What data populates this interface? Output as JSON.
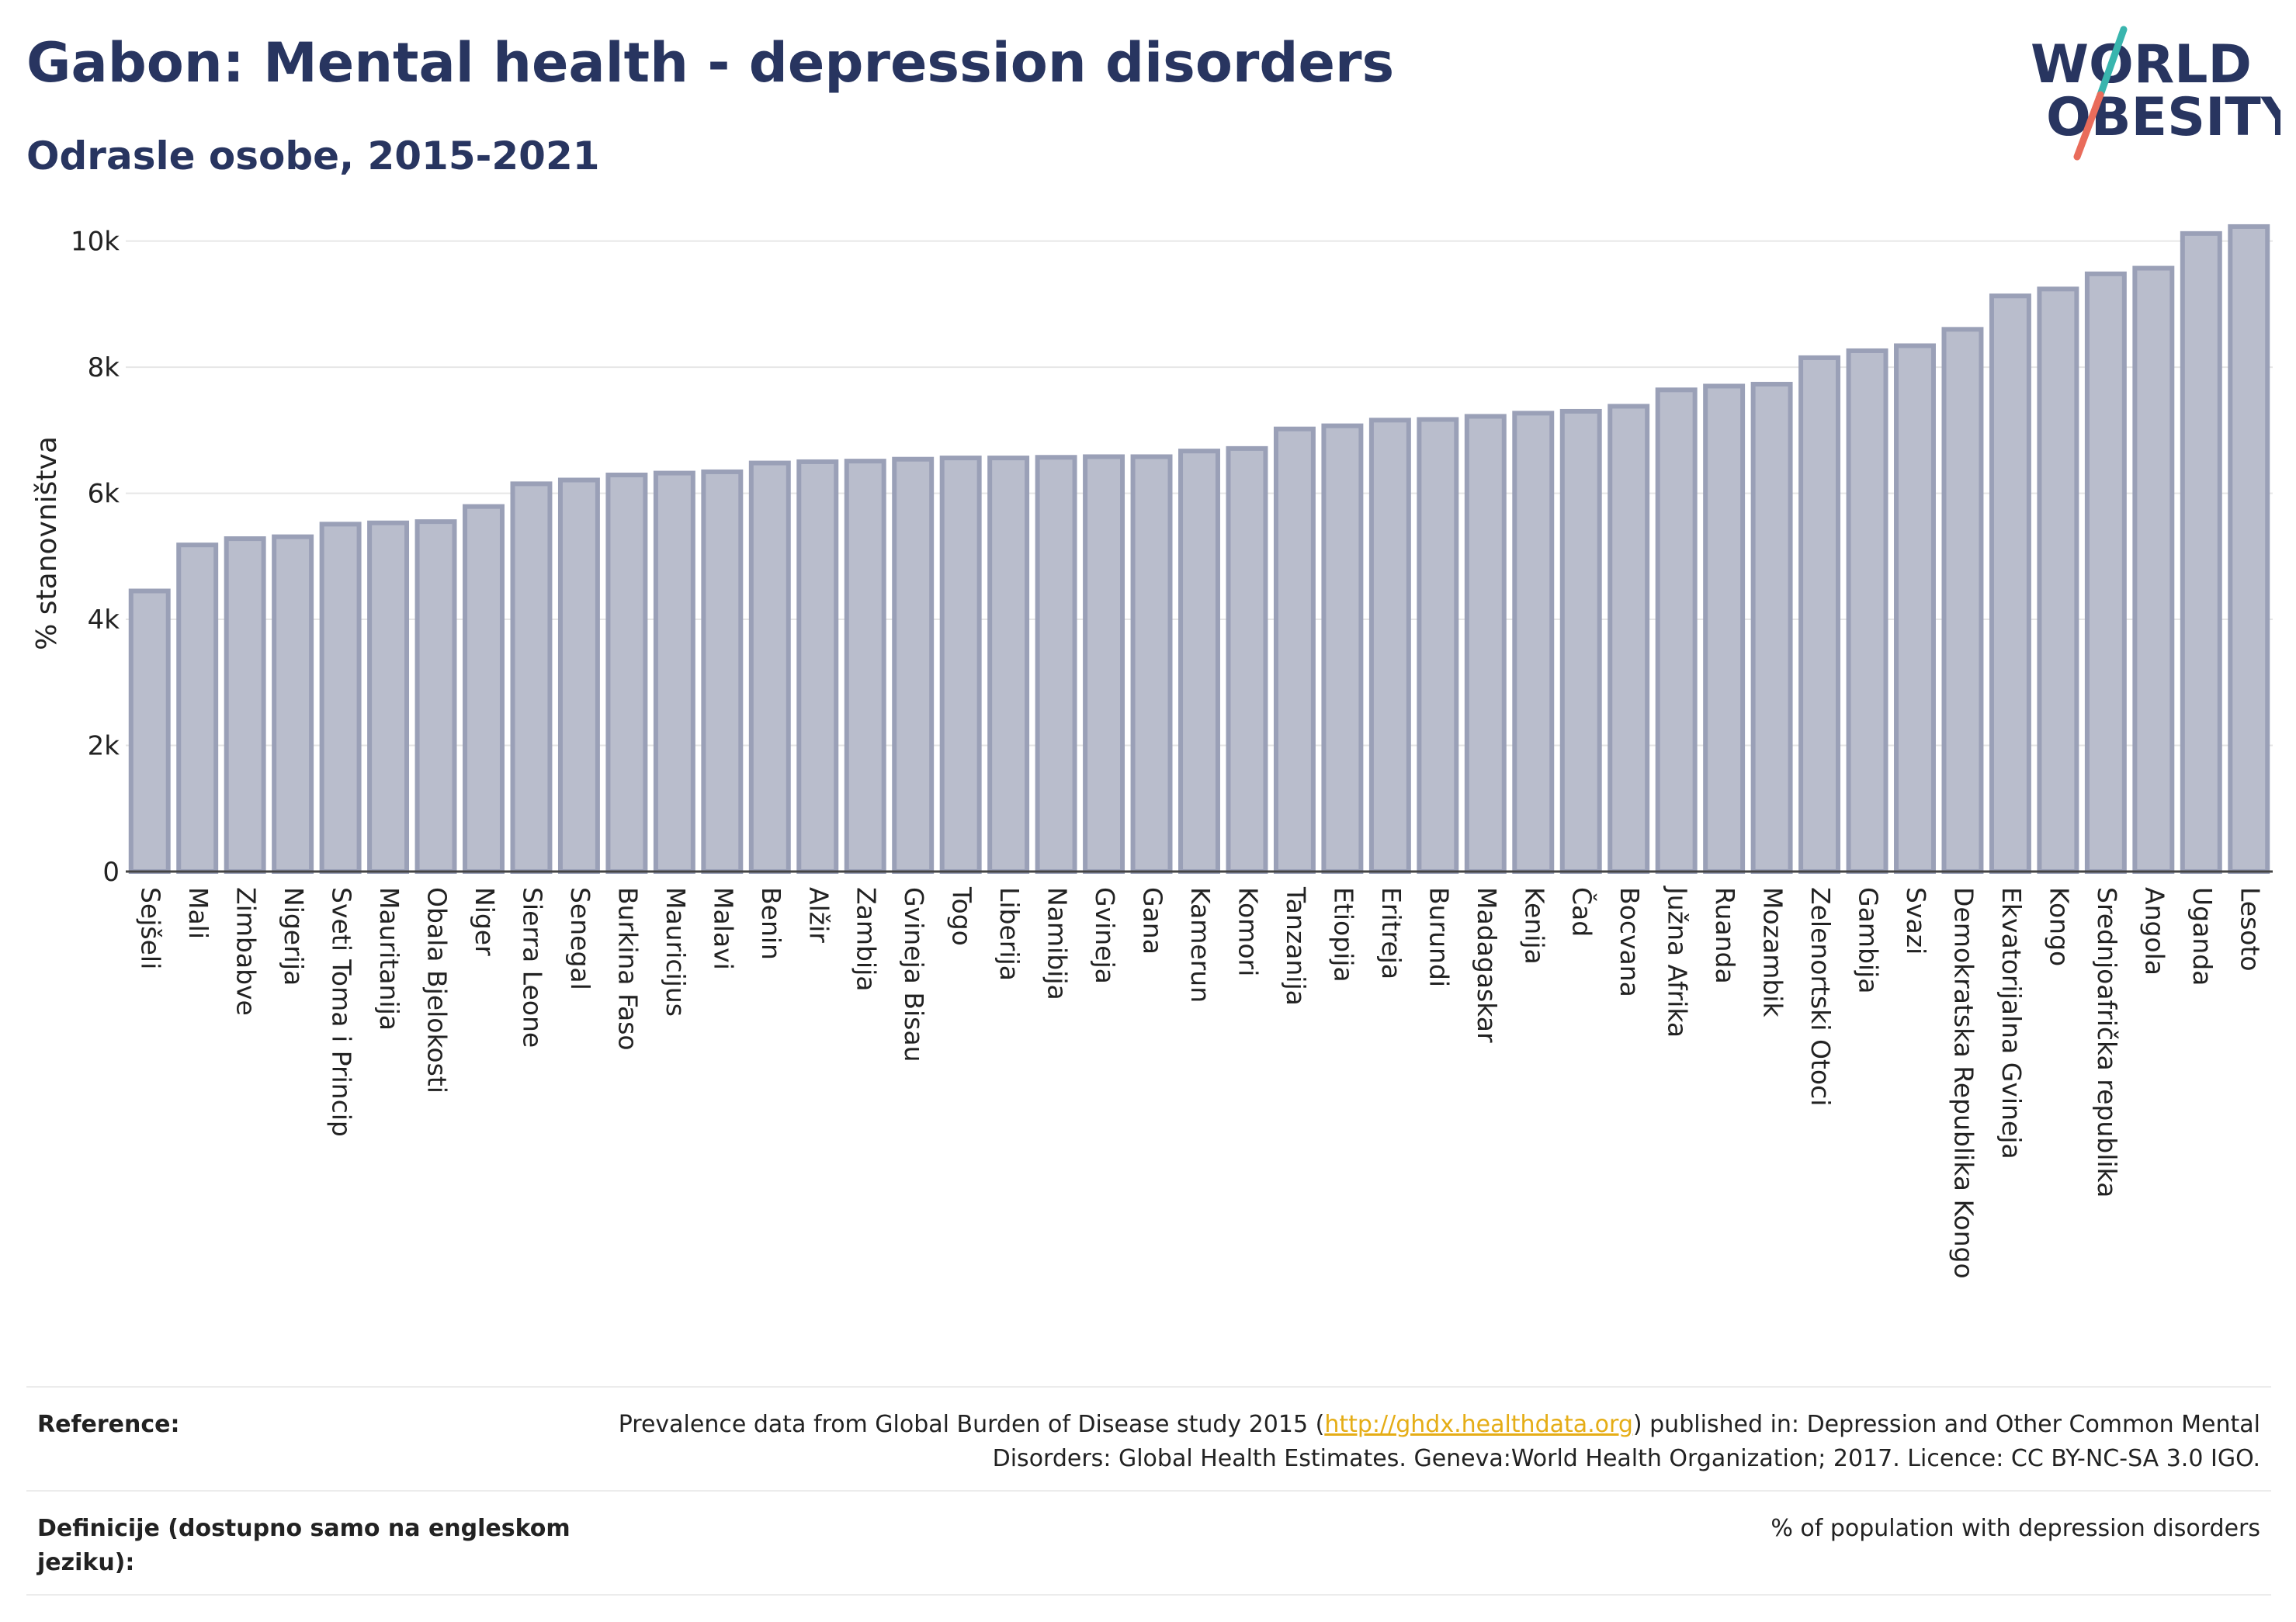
{
  "header": {
    "title": "Gabon: Mental health - depression disorders",
    "subtitle": "Odrasle osobe, 2015-2021"
  },
  "logo": {
    "line1": "WORLD",
    "line2": "OBESITY",
    "colors": {
      "text": "#283560",
      "slash_top": "#39b5ae",
      "slash_bottom": "#e96c5b"
    }
  },
  "chart_data": {
    "type": "bar",
    "ylabel": "% stanovništva",
    "ylim": [
      0,
      10500
    ],
    "yticks": [
      0,
      2000,
      4000,
      6000,
      8000,
      10000
    ],
    "ytick_labels": [
      "0",
      "2k",
      "4k",
      "6k",
      "8k",
      "10k"
    ],
    "grid": true,
    "bar_color": "#b9bdcc",
    "bar_edge_color": "#9aa0b7",
    "categories": [
      "Sejšeli",
      "Mali",
      "Zimbabve",
      "Nigerija",
      "Sveti Toma i Princip",
      "Mauritanija",
      "Obala Bjelokosti",
      "Niger",
      "Sierra Leone",
      "Senegal",
      "Burkina Faso",
      "Mauricijus",
      "Malavi",
      "Benin",
      "Alžir",
      "Zambija",
      "Gvineja Bisau",
      "Togo",
      "Liberija",
      "Namibija",
      "Gvineja",
      "Gana",
      "Kamerun",
      "Komori",
      "Tanzanija",
      "Etiopija",
      "Eritreja",
      "Burundi",
      "Madagaskar",
      "Kenija",
      "Čad",
      "Bocvana",
      "Južna Afrika",
      "Ruanda",
      "Mozambik",
      "Zelenortski Otoci",
      "Gambija",
      "Svazi",
      "Demokratska Republika Kongo",
      "Ekvatorijalna Gvineja",
      "Kongo",
      "Srednjoafrička republika",
      "Angola",
      "Uganda",
      "Lesoto"
    ],
    "values": [
      4450,
      5180,
      5280,
      5310,
      5510,
      5530,
      5550,
      5790,
      6150,
      6210,
      6290,
      6320,
      6340,
      6480,
      6500,
      6510,
      6540,
      6560,
      6560,
      6570,
      6580,
      6580,
      6670,
      6710,
      7020,
      7070,
      7160,
      7170,
      7220,
      7270,
      7300,
      7380,
      7640,
      7700,
      7730,
      8150,
      8260,
      8340,
      8600,
      9130,
      9240,
      9480,
      9570,
      10120,
      10230
    ]
  },
  "footer": {
    "reference_label": "Reference:",
    "reference_pre": "Prevalence data from Global Burden of Disease study 2015 (",
    "reference_link": "http://ghdx.healthdata.org",
    "reference_post": ") published in: Depression and Other Common Mental Disorders: Global Health Estimates. Geneva:World Health Organization; 2017. Licence: CC BY-NC-SA 3.0 IGO.",
    "definition_label": "Definicije (dostupno samo na engleskom jeziku):",
    "definition_text": "% of population with depression disorders"
  }
}
